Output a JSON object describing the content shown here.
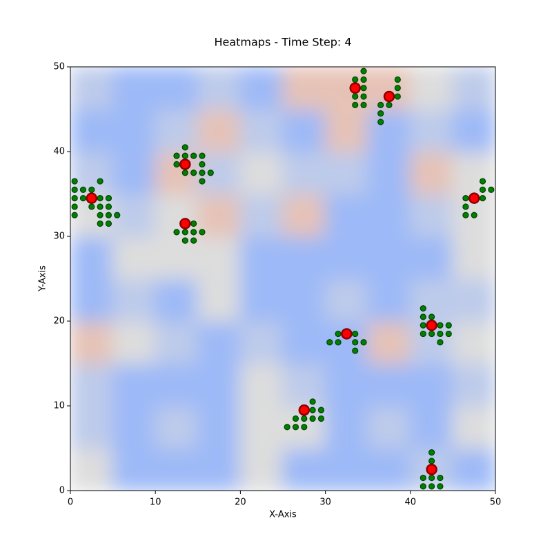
{
  "chart_data": {
    "type": "heatmap",
    "title": "Heatmaps - Time Step: 4",
    "xlabel": "X-Axis",
    "ylabel": "Y-Axis",
    "xlim": [
      0,
      50
    ],
    "ylim": [
      0,
      50
    ],
    "xticks": [
      0,
      10,
      20,
      30,
      40,
      50
    ],
    "yticks": [
      0,
      10,
      20,
      30,
      40,
      50
    ],
    "colormap": "coolwarm",
    "z": [
      [
        0.5,
        0.3,
        0.3,
        0.3,
        0.5,
        0.3,
        0.3,
        0.3,
        0.4,
        0.3
      ],
      [
        0.4,
        0.3,
        0.4,
        0.3,
        0.5,
        0.5,
        0.3,
        0.4,
        0.3,
        0.5
      ],
      [
        0.4,
        0.3,
        0.3,
        0.3,
        0.5,
        0.4,
        0.3,
        0.3,
        0.3,
        0.4
      ],
      [
        0.6,
        0.5,
        0.4,
        0.3,
        0.4,
        0.3,
        0.3,
        0.6,
        0.4,
        0.5
      ],
      [
        0.3,
        0.4,
        0.3,
        0.5,
        0.3,
        0.3,
        0.4,
        0.3,
        0.4,
        0.4
      ],
      [
        0.3,
        0.5,
        0.5,
        0.5,
        0.3,
        0.3,
        0.3,
        0.3,
        0.3,
        0.5
      ],
      [
        0.5,
        0.4,
        0.5,
        0.6,
        0.4,
        0.6,
        0.3,
        0.3,
        0.4,
        0.5
      ],
      [
        0.4,
        0.3,
        0.6,
        0.4,
        0.5,
        0.4,
        0.4,
        0.3,
        0.6,
        0.5
      ],
      [
        0.3,
        0.3,
        0.4,
        0.6,
        0.4,
        0.3,
        0.6,
        0.3,
        0.4,
        0.3
      ],
      [
        0.4,
        0.3,
        0.3,
        0.4,
        0.3,
        0.6,
        0.6,
        0.6,
        0.5,
        0.4
      ]
    ],
    "series": [
      {
        "color": "green",
        "edgecolor": "#004000",
        "size": 4,
        "x": [
          0.5,
          0.5,
          1.5,
          2.5,
          3.5,
          0.5,
          1.5,
          3.5,
          4.5,
          0.5,
          2.5,
          3.5,
          4.5,
          0.5,
          3.5,
          4.5,
          5.5,
          3.5,
          4.5,
          13.5,
          12.5,
          13.5,
          14.5,
          15.5,
          12.5,
          15.5,
          13.5,
          14.5,
          15.5,
          16.5,
          15.5,
          14.5,
          12.5,
          13.5,
          14.5,
          15.5,
          13.5,
          14.5,
          34.5,
          33.5,
          34.5,
          34.5,
          33.5,
          34.5,
          33.5,
          34.5,
          38.5,
          38.5,
          38.5,
          36.5,
          37.5,
          36.5,
          36.5,
          48.5,
          48.5,
          49.5,
          46.5,
          48.5,
          46.5,
          46.5,
          47.5,
          31.5,
          33.5,
          30.5,
          31.5,
          33.5,
          34.5,
          33.5,
          41.5,
          41.5,
          42.5,
          41.5,
          43.5,
          44.5,
          41.5,
          42.5,
          43.5,
          44.5,
          43.5,
          28.5,
          28.5,
          29.5,
          26.5,
          27.5,
          28.5,
          29.5,
          25.5,
          26.5,
          27.5,
          42.5,
          42.5,
          41.5,
          42.5,
          43.5,
          41.5,
          42.5,
          43.5
        ],
        "y": [
          36.5,
          35.5,
          35.5,
          35.5,
          36.5,
          34.5,
          34.5,
          34.5,
          34.5,
          33.5,
          33.5,
          33.5,
          33.5,
          32.5,
          32.5,
          32.5,
          32.5,
          31.5,
          31.5,
          40.5,
          39.5,
          39.5,
          39.5,
          39.5,
          38.5,
          38.5,
          37.5,
          37.5,
          37.5,
          37.5,
          36.5,
          31.5,
          30.5,
          30.5,
          30.5,
          30.5,
          29.5,
          29.5,
          49.5,
          48.5,
          48.5,
          47.5,
          46.5,
          46.5,
          45.5,
          45.5,
          48.5,
          47.5,
          46.5,
          45.5,
          45.5,
          44.5,
          43.5,
          36.5,
          35.5,
          35.5,
          34.5,
          34.5,
          33.5,
          32.5,
          32.5,
          18.5,
          18.5,
          17.5,
          17.5,
          17.5,
          17.5,
          16.5,
          21.5,
          20.5,
          20.5,
          19.5,
          19.5,
          19.5,
          18.5,
          18.5,
          18.5,
          18.5,
          17.5,
          10.5,
          9.5,
          9.5,
          8.5,
          8.5,
          8.5,
          8.5,
          7.5,
          7.5,
          7.5,
          4.5,
          3.5,
          1.5,
          1.5,
          1.5,
          0.5,
          0.5,
          0.5
        ]
      },
      {
        "color": "red",
        "edgecolor": "#8b0000",
        "size": 7,
        "x": [
          2.5,
          13.5,
          13.5,
          33.5,
          37.5,
          47.5,
          32.5,
          42.5,
          27.5,
          42.5
        ],
        "y": [
          34.5,
          38.5,
          31.5,
          47.5,
          46.5,
          34.5,
          18.5,
          19.5,
          9.5,
          2.5
        ]
      }
    ]
  }
}
